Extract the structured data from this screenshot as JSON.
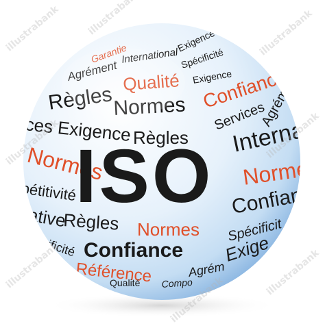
{
  "colors": {
    "dark": "#1a1a1a",
    "accent": "#e0502a",
    "sphere_light": "#ffffff",
    "sphere_mid": "#dcecf9",
    "sphere_edge": "#9cc4ea"
  },
  "watermark": "illustrabank",
  "words": {
    "iso": "ISO",
    "garantie": "Garantie",
    "international_top": "International",
    "exigence_top": "Exigence",
    "specificite_top": "Spécificité",
    "agrement_top": "Agrément",
    "qualite_top": "Qualité",
    "exigence_small": "Exigence",
    "confiance_top": "Confiance",
    "regles_1": "Règles",
    "normes_1": "Normes",
    "services": "Services",
    "agrement_right": "Agrément",
    "exigence_left": "ces Exigence",
    "regles_2": "Règles",
    "international_right": "Internati",
    "normes_left": "Normes",
    "normes_right": "Normes",
    "petitivite": "pétitivité",
    "confian_right": "Confian",
    "ative": "ative",
    "regles_3": "Règles",
    "normes_3": "Normes",
    "specificite_right": "Spécificit",
    "cificite_left": "écificité",
    "confiance_bottom": "Confiance",
    "exigen": "Exige",
    "reference": "Référence",
    "agrement_bottom": "Agrém",
    "qualite_bottom": "Qualité",
    "compo": "Compo"
  }
}
